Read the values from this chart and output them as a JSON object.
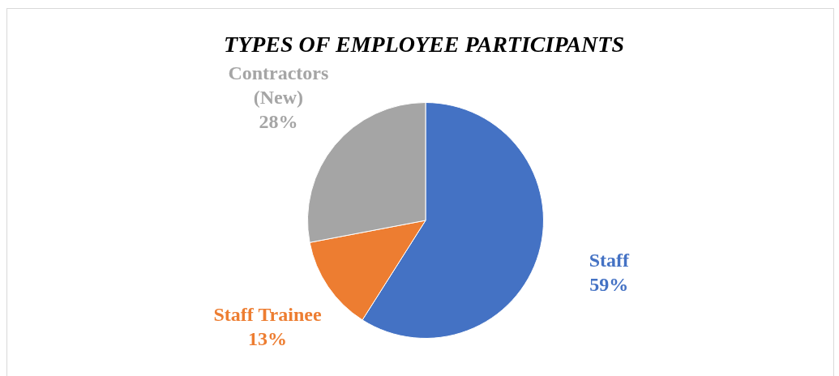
{
  "chart_data": {
    "type": "pie",
    "title": "TYPES OF EMPLOYEE PARTICIPANTS",
    "categories": [
      "Staff",
      "Staff Trainee",
      "Contractors (New)"
    ],
    "values": [
      59,
      13,
      28
    ],
    "colors": [
      "#4472c4",
      "#ed7d31",
      "#a5a5a5"
    ],
    "value_labels": [
      "59%",
      "13%",
      "28%"
    ],
    "legend": false
  }
}
